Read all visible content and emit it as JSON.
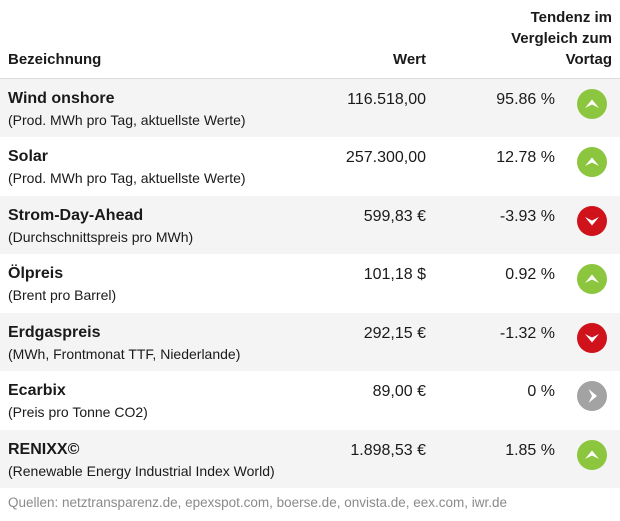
{
  "header": {
    "name": "Bezeichnung",
    "value": "Wert",
    "trend_line1": "Tendenz im",
    "trend_line2": "Vergleich zum",
    "trend_line3": "Vortag"
  },
  "rows": [
    {
      "title": "Wind onshore",
      "subtitle": "(Prod. MWh pro Tag, aktuellste Werte)",
      "value": "116.518,00",
      "change": "95.86 %",
      "direction": "up",
      "icon": "arrow-up-icon",
      "color": "#8cc63f"
    },
    {
      "title": "Solar",
      "subtitle": "(Prod. MWh pro Tag, aktuellste Werte)",
      "value": "257.300,00",
      "change": "12.78 %",
      "direction": "up",
      "icon": "arrow-up-icon",
      "color": "#8cc63f"
    },
    {
      "title": "Strom-Day-Ahead",
      "subtitle": "(Durchschnittspreis pro MWh)",
      "value": "599,83 €",
      "change": "-3.93 %",
      "direction": "down",
      "icon": "arrow-down-icon",
      "color": "#d0121b"
    },
    {
      "title": "Ölpreis",
      "subtitle": "(Brent pro Barrel)",
      "value": "101,18 $",
      "change": "0.92 %",
      "direction": "up",
      "icon": "arrow-up-icon",
      "color": "#8cc63f"
    },
    {
      "title": "Erdgaspreis",
      "subtitle": "(MWh, Frontmonat TTF, Niederlande)",
      "value": "292,15 €",
      "change": "-1.32 %",
      "direction": "down",
      "icon": "arrow-down-icon",
      "color": "#d0121b"
    },
    {
      "title": "Ecarbix",
      "subtitle": "(Preis pro Tonne CO2)",
      "value": "89,00 €",
      "change": "0 %",
      "direction": "neutral",
      "icon": "arrow-right-icon",
      "color": "#a3a3a3"
    },
    {
      "title": "RENIXX©",
      "subtitle": "(Renewable Energy Industrial Index World)",
      "value": "1.898,53 €",
      "change": "1.85 %",
      "direction": "up",
      "icon": "arrow-up-icon",
      "color": "#8cc63f"
    }
  ],
  "footer": {
    "sources": "Quellen: netztransparenz.de, epexspot.com, boerse.de, onvista.de, eex.com, iwr.de"
  }
}
